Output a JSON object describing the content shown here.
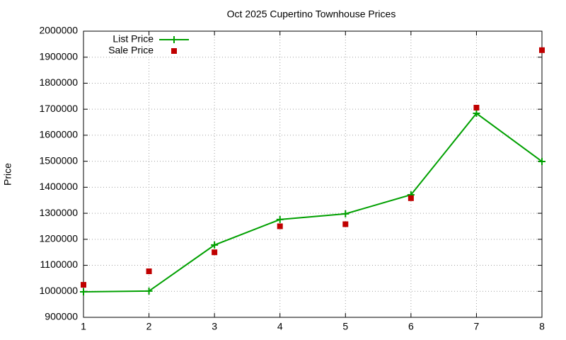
{
  "chart_data": {
    "type": "line",
    "title": "Oct 2025 Cupertino Townhouse Prices",
    "y_label": "Price",
    "x": [
      1,
      2,
      3,
      4,
      5,
      6,
      7,
      8
    ],
    "series": [
      {
        "name": "List Price",
        "color": "#00a000",
        "line": true,
        "marker": "plus",
        "values": [
          998000,
          1001000,
          1178000,
          1276000,
          1298000,
          1371000,
          1684000,
          1499000
        ]
      },
      {
        "name": "Sale Price",
        "color": "#c00000",
        "line": false,
        "marker": "square",
        "values": [
          1025000,
          1077000,
          1150000,
          1250000,
          1258000,
          1358000,
          1706000,
          1927000
        ]
      }
    ],
    "xlim": [
      1,
      8
    ],
    "xticks": [
      1,
      2,
      3,
      4,
      5,
      6,
      7,
      8
    ],
    "ylim": [
      900000,
      2000000
    ],
    "yticks": [
      900000,
      1000000,
      1100000,
      1200000,
      1300000,
      1400000,
      1500000,
      1600000,
      1700000,
      1800000,
      1900000,
      2000000
    ],
    "grid": true,
    "legend": "top-left"
  }
}
